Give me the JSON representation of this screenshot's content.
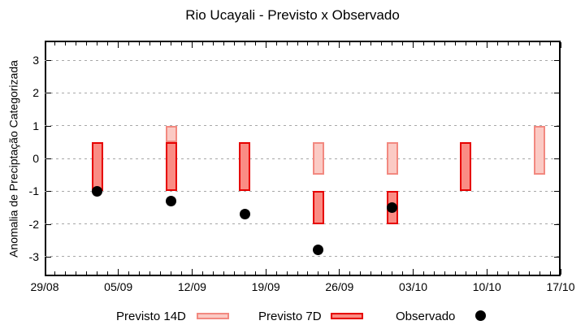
{
  "chart_data": {
    "type": "bar",
    "title": "Rio Ucayali - Previsto x Observado",
    "xlabel": "",
    "ylabel": "Anomalia de Preciptação Categorizada",
    "x_tick_labels": [
      "29/08",
      "05/09",
      "12/09",
      "19/09",
      "26/09",
      "03/10",
      "10/10",
      "17/10"
    ],
    "x_tick_days": [
      0,
      7,
      14,
      21,
      28,
      35,
      42,
      49
    ],
    "x_minor_tick_every_days": 1,
    "xlim_days": [
      0,
      49
    ],
    "y_ticks": [
      3,
      2,
      1,
      0,
      -1,
      -2,
      -3
    ],
    "ylim": [
      -3.6,
      3.6
    ],
    "grid": "horizontal-dotted",
    "legend_position": "bottom",
    "groups": [
      {
        "date": "03/09",
        "day": 5,
        "previsto_14d": null,
        "previsto_7d": [
          -1,
          0.5
        ],
        "observado": -1.0
      },
      {
        "date": "10/09",
        "day": 12,
        "previsto_14d": [
          0.5,
          1
        ],
        "previsto_7d": [
          -1,
          0.5
        ],
        "observado": -1.3
      },
      {
        "date": "17/09",
        "day": 19,
        "previsto_14d": null,
        "previsto_7d": [
          -1,
          0.5
        ],
        "observado": -1.7
      },
      {
        "date": "24/09",
        "day": 26,
        "previsto_14d": [
          -0.5,
          0.5
        ],
        "previsto_7d": [
          -2,
          -1
        ],
        "observado": -2.8
      },
      {
        "date": "01/10",
        "day": 33,
        "previsto_14d": [
          -0.5,
          0.5
        ],
        "previsto_7d": [
          -2,
          -1
        ],
        "observado": -1.5
      },
      {
        "date": "08/10",
        "day": 40,
        "previsto_14d": null,
        "previsto_7d": [
          -1,
          0.5
        ],
        "observado": null
      },
      {
        "date": "15/10",
        "day": 47,
        "previsto_14d": [
          -0.5,
          1
        ],
        "previsto_7d": null,
        "observado": null
      }
    ],
    "legend": [
      {
        "label": "Previsto 14D",
        "swatch": "light-box"
      },
      {
        "label": "Previsto 7D",
        "swatch": "dark-box"
      },
      {
        "label": "Observado",
        "swatch": "black-dot"
      }
    ],
    "colors": {
      "p14_fill": "#fbcac4",
      "p14_border": "#f28980",
      "p7_fill": "#fa8c84",
      "p7_border": "#e60000",
      "observado": "#000000",
      "grid": "#a8a8a8",
      "axis": "#000000"
    }
  }
}
